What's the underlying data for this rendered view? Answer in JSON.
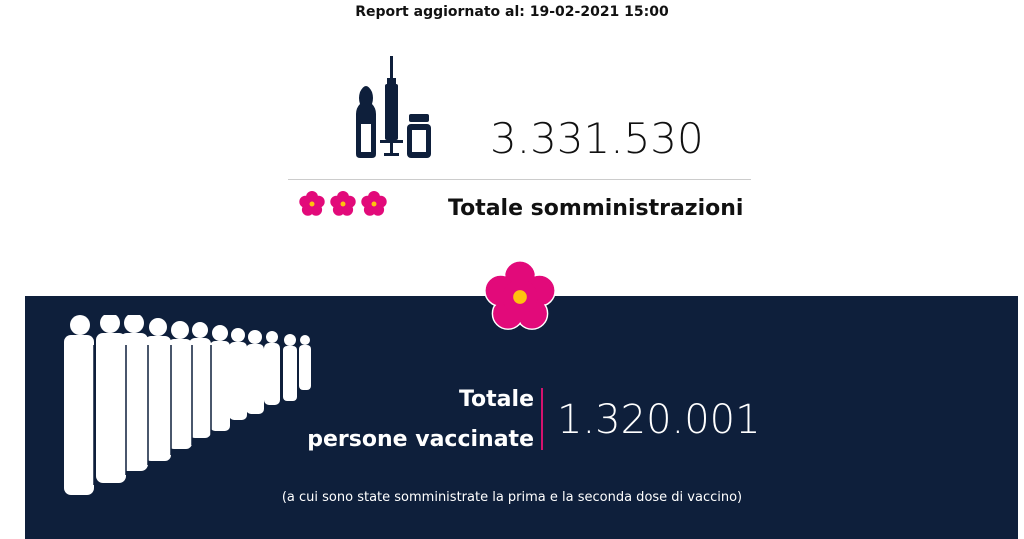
{
  "header": {
    "report_updated": "Report aggiornato al: 19-02-2021 15:00"
  },
  "administrations": {
    "icon": "syringe-vials-icon",
    "value": "3.331.530",
    "label": "Totale somministrazioni"
  },
  "vaccinated": {
    "icon": "crowd-icon",
    "label_line1": "Totale",
    "label_line2": "persone vaccinate",
    "value": "1.320.001",
    "note": "(a cui sono state somministrate la prima e la seconda dose di vaccino)"
  },
  "colors": {
    "navy": "#0e1f3b",
    "pink": "#e20a7a",
    "yellow": "#ffc20e"
  }
}
